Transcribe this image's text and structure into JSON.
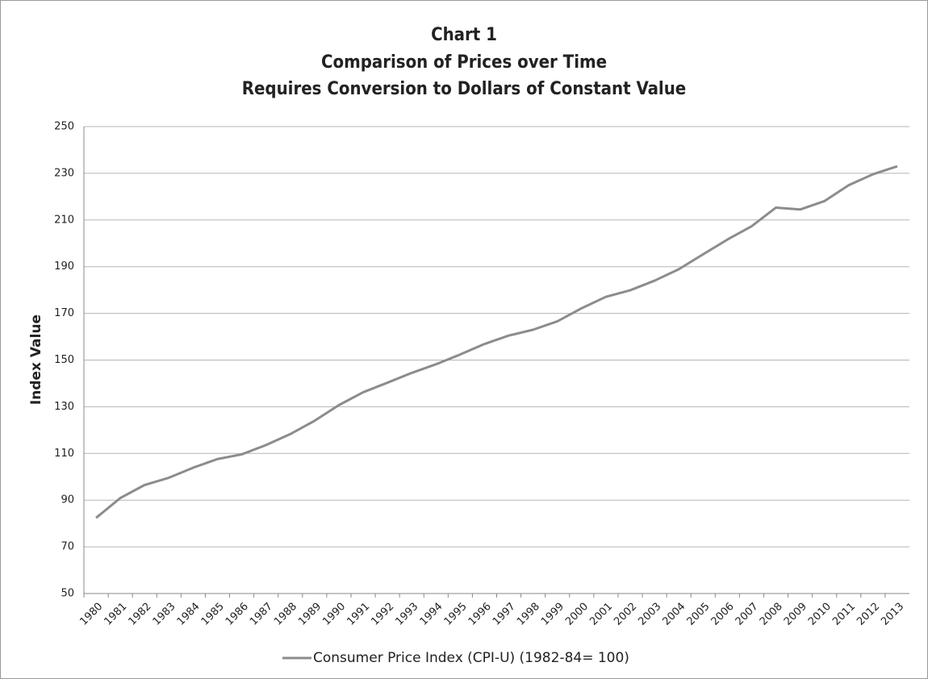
{
  "chart_data": {
    "type": "line",
    "title": [
      "Chart 1",
      "Comparison of Prices over Time",
      "Requires Conversion to Dollars of Constant Value"
    ],
    "y_label": "Index Value",
    "categories": [
      "1980",
      "1981",
      "1982",
      "1983",
      "1984",
      "1985",
      "1986",
      "1987",
      "1988",
      "1989",
      "1990",
      "1991",
      "1992",
      "1993",
      "1994",
      "1995",
      "1996",
      "1997",
      "1998",
      "1999",
      "2000",
      "2001",
      "2002",
      "2003",
      "2004",
      "2005",
      "2006",
      "2007",
      "2008",
      "2009",
      "2010",
      "2011",
      "2012",
      "2013"
    ],
    "series": [
      {
        "name": "Consumer Price Index (CPI-U) (1982-84= 100)",
        "color": "#8c8c8c",
        "values": [
          82.4,
          90.9,
          96.5,
          99.6,
          103.9,
          107.6,
          109.6,
          113.6,
          118.3,
          124.0,
          130.7,
          136.2,
          140.3,
          144.5,
          148.2,
          152.4,
          156.9,
          160.5,
          163.0,
          166.6,
          172.2,
          177.1,
          179.9,
          184.0,
          188.9,
          195.3,
          201.6,
          207.3,
          215.3,
          214.5,
          218.1,
          224.9,
          229.6,
          233.0
        ]
      }
    ],
    "ylim": [
      50,
      250
    ],
    "yticks": [
      50,
      70,
      90,
      110,
      130,
      150,
      170,
      190,
      210,
      230,
      250
    ],
    "grid": true,
    "legend": "bottom"
  }
}
